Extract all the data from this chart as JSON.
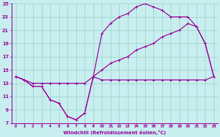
{
  "title": "Windchill (Refroidissement éolien,°C)",
  "background_color": "#c8eef0",
  "grid_color": "#a0d4c8",
  "line_color": "#990099",
  "xlim": [
    -0.5,
    23.5
  ],
  "ylim": [
    7,
    25
  ],
  "xticks": [
    0,
    1,
    2,
    3,
    4,
    5,
    6,
    7,
    8,
    9,
    10,
    11,
    12,
    13,
    14,
    15,
    16,
    17,
    18,
    19,
    20,
    21,
    22,
    23
  ],
  "yticks": [
    7,
    9,
    11,
    13,
    15,
    17,
    19,
    21,
    23,
    25
  ],
  "line1_x": [
    0,
    1,
    2,
    3,
    4,
    5,
    6,
    7,
    8,
    9,
    10,
    11,
    12,
    13,
    14,
    15,
    16,
    17,
    18,
    19,
    20,
    21,
    22,
    23
  ],
  "line1_y": [
    14,
    13.5,
    12.5,
    12.5,
    10.5,
    10,
    8,
    7.5,
    8.5,
    14,
    13.5,
    13.5,
    13.5,
    13.5,
    13.5,
    13.5,
    13.5,
    13.5,
    13.5,
    13.5,
    13.5,
    13.5,
    13.5,
    14
  ],
  "line2_x": [
    0,
    1,
    2,
    3,
    4,
    5,
    6,
    7,
    8,
    9,
    10,
    11,
    12,
    13,
    14,
    15,
    16,
    17,
    18,
    19,
    20,
    21,
    22,
    23
  ],
  "line2_y": [
    14,
    13.5,
    12.5,
    12.5,
    10.5,
    10,
    8,
    7.5,
    8.5,
    14,
    20.5,
    22,
    23,
    23.5,
    24.5,
    25,
    24.5,
    24,
    23,
    23,
    23,
    21.5,
    19,
    14
  ],
  "line3_x": [
    0,
    1,
    2,
    3,
    4,
    5,
    6,
    7,
    8,
    9,
    10,
    11,
    12,
    13,
    14,
    15,
    16,
    17,
    18,
    19,
    20,
    21,
    22,
    23
  ],
  "line3_y": [
    14,
    13.5,
    13,
    13,
    13,
    13,
    13,
    13,
    13,
    14,
    15,
    16,
    16.5,
    17,
    18,
    18.5,
    19,
    20,
    20.5,
    21,
    22,
    21.5,
    19,
    14
  ]
}
